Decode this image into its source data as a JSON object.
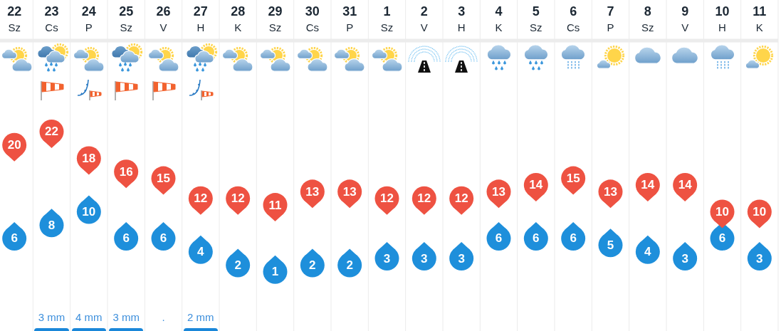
{
  "chart_data": {
    "type": "scatter",
    "categories": [
      "22\nSz",
      "23\nCs",
      "24\nP",
      "25\nSz",
      "26\nV",
      "27\nH",
      "28\nK",
      "29\nSz",
      "30\nCs",
      "31\nP",
      "1\nSz",
      "2\nV",
      "3\nH",
      "4\nK",
      "5\nSz",
      "6\nCs",
      "7\nP",
      "8\nSz",
      "9\nV",
      "10\nH",
      "11\nK"
    ],
    "series": [
      {
        "color": "#ee5242",
        "marker": "circle",
        "values": [
          20,
          22,
          18,
          16,
          15,
          12,
          12,
          11,
          13,
          13,
          12,
          12,
          12,
          13,
          14,
          15,
          13,
          14,
          14,
          10,
          10
        ]
      },
      {
        "color": "#1e8fdb",
        "marker": "circle",
        "values": [
          6,
          8,
          10,
          6,
          6,
          4,
          2,
          1,
          2,
          2,
          3,
          3,
          3,
          6,
          6,
          6,
          5,
          4,
          3,
          6,
          3
        ]
      }
    ],
    "annotations": [
      "3 mm",
      "4 mm",
      "3 mm",
      ".",
      "2 mm"
    ],
    "data_labels": true,
    "grid": "x",
    "tick_labels": "x"
  }
}
